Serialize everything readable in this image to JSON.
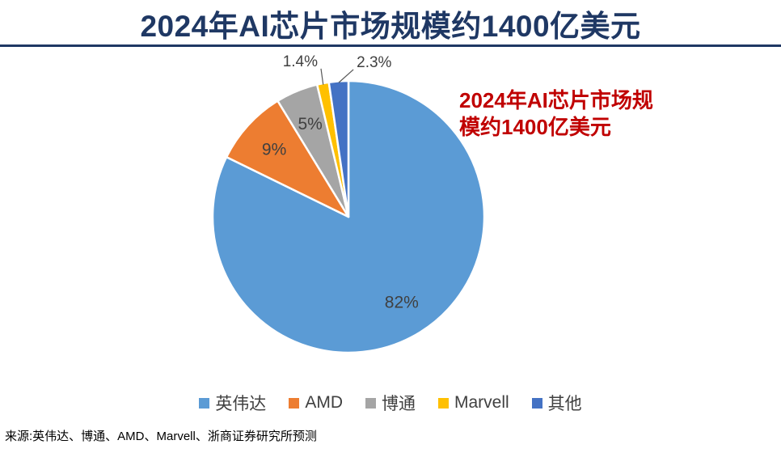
{
  "title": "2024年AI芯片市场规模约1400亿美元",
  "annotation": {
    "line1": "2024年AI芯片市场规",
    "line2": "模约1400亿美元"
  },
  "source": "来源:英伟达、博通、AMD、Marvell、浙商证券研究所预测",
  "colors": {
    "title": "#1F3864",
    "annotation": "#C00000",
    "label_text": "#404040",
    "leader_line": "#595959"
  },
  "chart_data": {
    "type": "pie",
    "title": "2024年AI芯片市场规模约1400亿美元",
    "categories": [
      "英伟达",
      "AMD",
      "博通",
      "Marvell",
      "其他"
    ],
    "values": [
      82,
      9,
      5,
      1.4,
      2.3
    ],
    "labels": [
      "82%",
      "9%",
      "5%",
      "1.4%",
      "2.3%"
    ],
    "colors": [
      "#5B9BD5",
      "#ED7D31",
      "#A5A5A5",
      "#FFC000",
      "#4472C4"
    ],
    "start_angle_deg": 0,
    "direction": "clockwise",
    "legend_position": "bottom",
    "annotation_text": "2024年AI芯片市场规模约1400亿美元"
  }
}
